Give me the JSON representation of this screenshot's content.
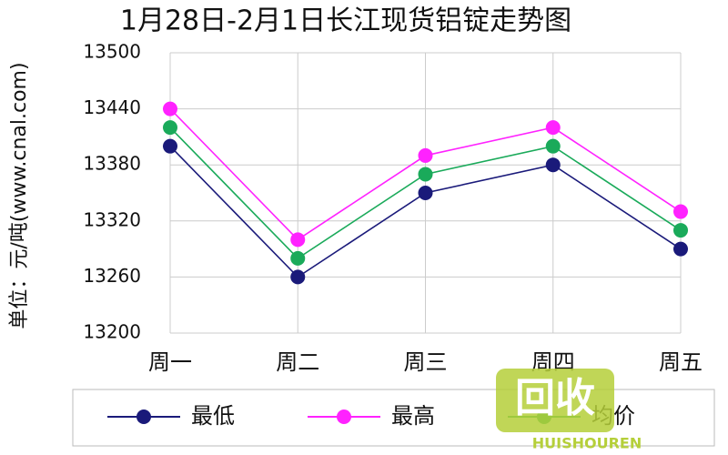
{
  "chart_data": {
    "type": "line",
    "title": "1月28日-2月1日长江现货铝锭走势图",
    "y_label": "单位：元/吨(www.cnal.com)",
    "categories": [
      "周一",
      "周二",
      "周三",
      "周四",
      "周五"
    ],
    "series": [
      {
        "name": "最低",
        "color": "#1a1a7a",
        "values": [
          13400,
          13260,
          13350,
          13380,
          13290
        ]
      },
      {
        "name": "最高",
        "color": "#ff22ff",
        "values": [
          13440,
          13300,
          13390,
          13420,
          13330
        ]
      },
      {
        "name": "均价",
        "color": "#1aaa5a",
        "values": [
          13420,
          13280,
          13370,
          13400,
          13310
        ]
      }
    ],
    "ylim": [
      13200,
      13500
    ],
    "yticks": [
      13200,
      13260,
      13320,
      13380,
      13440,
      13500
    ],
    "grid": true,
    "watermark": [
      "回收",
      "HUISHOUREN"
    ]
  }
}
